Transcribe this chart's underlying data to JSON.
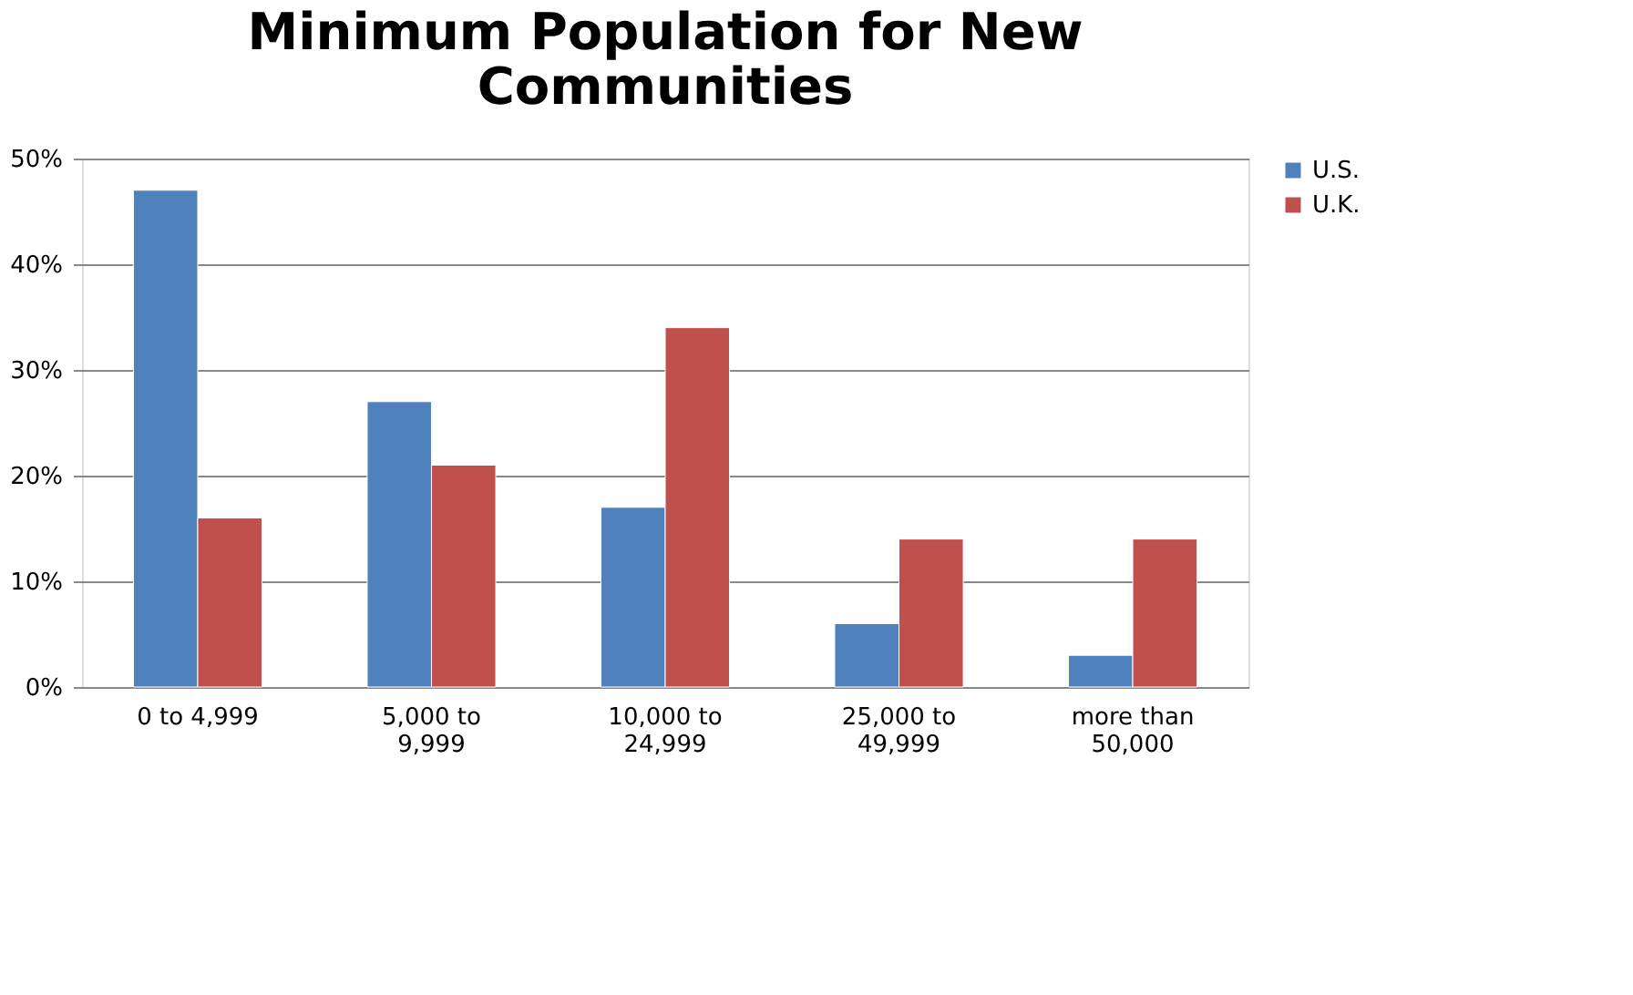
{
  "chart_data": {
    "type": "bar",
    "title": "Minimum Population for New Communities",
    "categories": [
      "0 to 4,999",
      "5,000 to 9,999",
      "10,000 to 24,999",
      "25,000 to 49,999",
      "more than 50,000"
    ],
    "series": [
      {
        "name": "U.S.",
        "color": "#4f81bd",
        "values": [
          47,
          27,
          17,
          6,
          3
        ]
      },
      {
        "name": "U.K.",
        "color": "#c0504d",
        "values": [
          16,
          21,
          34,
          14,
          14
        ]
      }
    ],
    "ylim": [
      0,
      50
    ],
    "yticks": [
      {
        "value": 0,
        "label": "0%"
      },
      {
        "value": 10,
        "label": "10%"
      },
      {
        "value": 20,
        "label": "20%"
      },
      {
        "value": 30,
        "label": "30%"
      },
      {
        "value": 40,
        "label": "40%"
      },
      {
        "value": 50,
        "label": "50%"
      }
    ],
    "grid": "y",
    "legend": "right"
  }
}
